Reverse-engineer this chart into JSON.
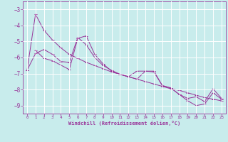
{
  "xlabel": "Windchill (Refroidissement éolien,°C)",
  "background_color": "#c8ecec",
  "line_color": "#993399",
  "grid_color": "#ffffff",
  "xlim": [
    -0.5,
    23.5
  ],
  "ylim": [
    -9.5,
    -2.5
  ],
  "yticks": [
    -9,
    -8,
    -7,
    -6,
    -5,
    -4,
    -3
  ],
  "xticks": [
    0,
    1,
    2,
    3,
    4,
    5,
    6,
    7,
    8,
    9,
    10,
    11,
    12,
    13,
    14,
    15,
    16,
    17,
    18,
    19,
    20,
    21,
    22,
    23
  ],
  "line1_x": [
    0,
    1,
    2,
    3,
    4,
    5,
    6,
    7,
    8,
    9,
    10,
    11,
    12,
    13,
    14,
    15,
    16,
    17,
    18,
    19,
    20,
    21,
    22,
    23
  ],
  "line1_y": [
    -6.8,
    -3.3,
    -4.3,
    -4.9,
    -5.4,
    -5.8,
    -6.05,
    -6.3,
    -6.5,
    -6.7,
    -6.9,
    -7.05,
    -7.2,
    -7.35,
    -7.5,
    -7.65,
    -7.8,
    -7.95,
    -8.05,
    -8.2,
    -8.35,
    -8.5,
    -8.6,
    -8.7
  ],
  "line2_x": [
    0,
    1,
    2,
    3,
    4,
    5,
    6,
    7,
    8,
    9,
    10,
    11,
    12,
    13,
    14,
    15,
    16,
    17,
    18,
    19,
    20,
    21,
    22,
    23
  ],
  "line2_y": [
    -6.8,
    -5.75,
    -5.5,
    -5.8,
    -6.25,
    -6.3,
    -4.75,
    -5.2,
    -6.0,
    -6.5,
    -6.8,
    -7.05,
    -7.2,
    -6.85,
    -6.85,
    -6.9,
    -7.75,
    -7.9,
    -8.3,
    -8.7,
    -9.0,
    -8.9,
    -8.2,
    -8.6
  ],
  "line3_x": [
    1,
    2,
    3,
    5,
    6,
    7,
    8,
    9,
    10,
    11,
    12,
    13,
    14,
    15,
    16,
    17,
    18,
    19,
    20,
    21,
    22,
    23
  ],
  "line3_y": [
    -5.55,
    -6.05,
    -6.2,
    -6.75,
    -4.8,
    -4.65,
    -5.8,
    -6.4,
    -6.85,
    -7.05,
    -7.2,
    -7.35,
    -6.85,
    -6.85,
    -7.75,
    -7.9,
    -8.3,
    -8.55,
    -8.45,
    -8.75,
    -7.95,
    -8.55
  ]
}
